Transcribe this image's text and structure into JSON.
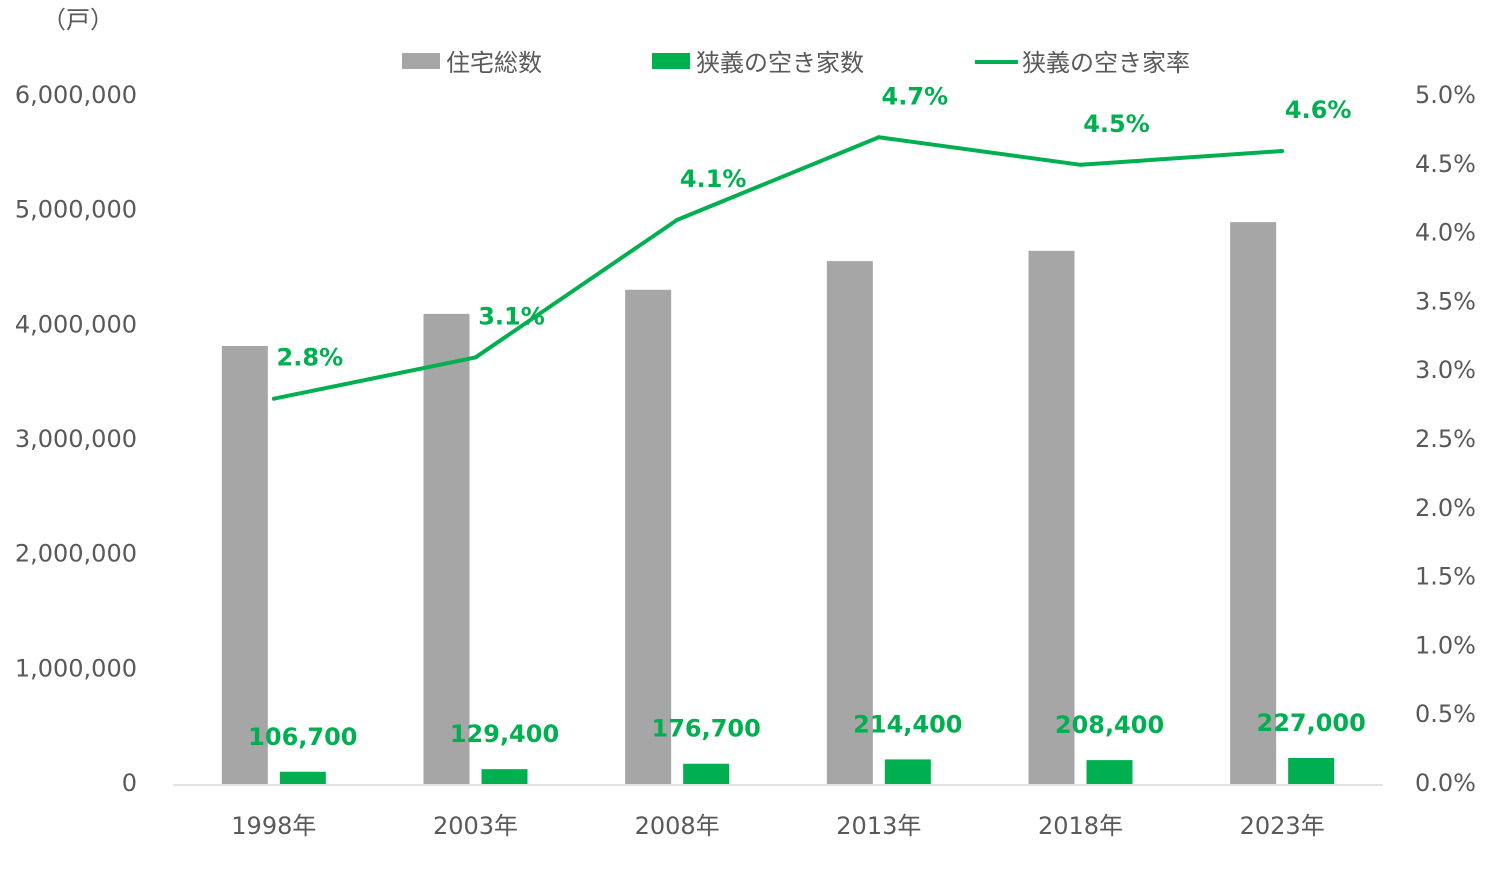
{
  "chart_data": {
    "type": "bar",
    "unit_label": "（戸）",
    "categories": [
      "1998年",
      "2003年",
      "2008年",
      "2013年",
      "2018年",
      "2023年"
    ],
    "series": [
      {
        "name": "住宅総数",
        "type": "bar",
        "axis": "left",
        "color": "#A6A6A6",
        "values": [
          3820000,
          4100000,
          4310000,
          4560000,
          4650000,
          4900000
        ]
      },
      {
        "name": "狭義の空き家数",
        "type": "bar",
        "axis": "left",
        "color": "#00B050",
        "values": [
          106700,
          129400,
          176700,
          214400,
          208400,
          227000
        ],
        "data_labels": [
          "106,700",
          "129,400",
          "176,700",
          "214,400",
          "208,400",
          "227,000"
        ]
      },
      {
        "name": "狭義の空き家率",
        "type": "line",
        "axis": "right",
        "color": "#00B050",
        "values": [
          2.8,
          3.1,
          4.1,
          4.7,
          4.5,
          4.6
        ],
        "data_labels": [
          "2.8%",
          "3.1%",
          "4.1%",
          "4.7%",
          "4.5%",
          "4.6%"
        ]
      }
    ],
    "y_left": {
      "ylim": [
        0,
        6000000
      ],
      "ticks": [
        "0",
        "1,000,000",
        "2,000,000",
        "3,000,000",
        "4,000,000",
        "5,000,000",
        "6,000,000"
      ]
    },
    "y_right": {
      "ylim": [
        0,
        5.0
      ],
      "ticks": [
        "0.0%",
        "0.5%",
        "1.0%",
        "1.5%",
        "2.0%",
        "2.5%",
        "3.0%",
        "3.5%",
        "4.0%",
        "4.5%",
        "5.0%"
      ]
    },
    "legend_position": "top",
    "grid": false
  }
}
